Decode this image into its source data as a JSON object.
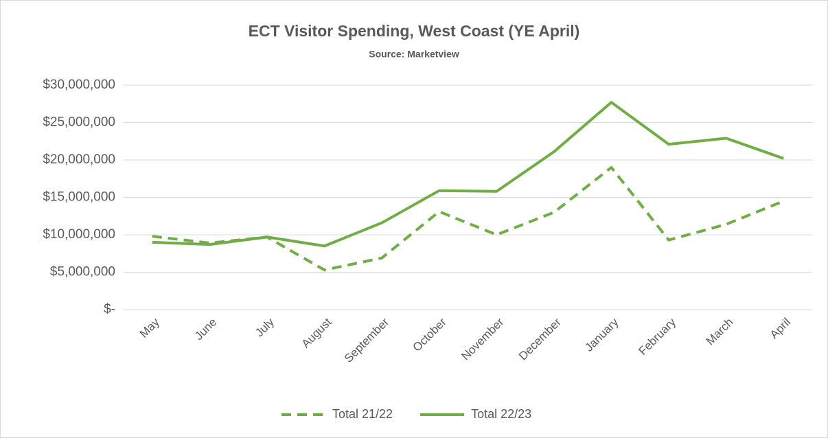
{
  "chart_data": {
    "type": "line",
    "title": "ECT Visitor Spending, West Coast (YE April)",
    "subtitle": "Source: Marketview",
    "categories": [
      "May",
      "June",
      "July",
      "August",
      "September",
      "October",
      "November",
      "December",
      "January",
      "February",
      "March",
      "April"
    ],
    "series": [
      {
        "name": "Total 21/22",
        "color": "#70ad47",
        "dash": true,
        "values": [
          9800000,
          8900000,
          9700000,
          5300000,
          6900000,
          13100000,
          10000000,
          13000000,
          19000000,
          9300000,
          11400000,
          14500000
        ]
      },
      {
        "name": "Total 22/23",
        "color": "#70ad47",
        "dash": false,
        "values": [
          9000000,
          8700000,
          9700000,
          8500000,
          11600000,
          15900000,
          15800000,
          21100000,
          27700000,
          22100000,
          22900000,
          20200000
        ]
      }
    ],
    "ylim": [
      0,
      30000000
    ],
    "yticks": [
      {
        "value": 0,
        "label": "$-"
      },
      {
        "value": 5000000,
        "label": "$5,000,000"
      },
      {
        "value": 10000000,
        "label": "$10,000,000"
      },
      {
        "value": 15000000,
        "label": "$15,000,000"
      },
      {
        "value": 20000000,
        "label": "$20,000,000"
      },
      {
        "value": 25000000,
        "label": "$25,000,000"
      },
      {
        "value": 30000000,
        "label": "$30,000,000"
      }
    ],
    "grid": true,
    "legend": "bottom"
  }
}
